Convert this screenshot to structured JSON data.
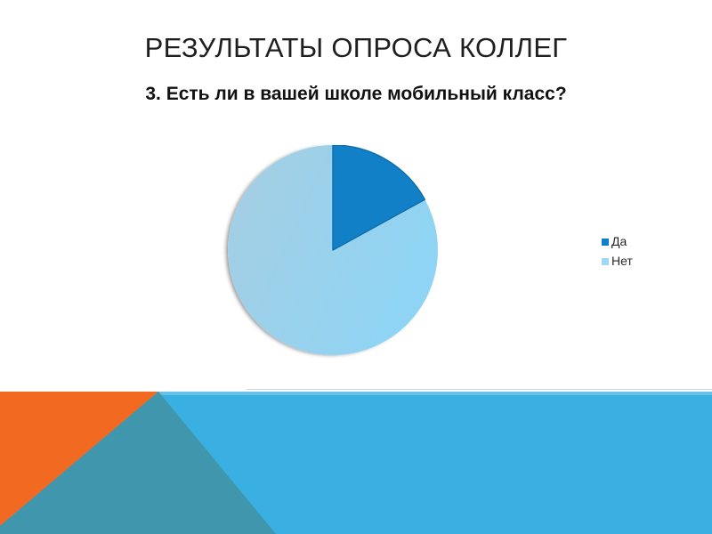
{
  "slide": {
    "title": "РЕЗУЛЬТАТЫ ОПРОСА КОЛЛЕГ"
  },
  "chart_data": {
    "type": "pie",
    "title": "3. Есть ли в вашей школе мобильный класс?",
    "categories": [
      "Да",
      "Нет"
    ],
    "values": [
      17,
      83
    ],
    "unit": "percent",
    "start_angle_deg": 0,
    "direction": "clockwise",
    "legend_position": "right",
    "colors": [
      "#1280c6",
      "#a0d7f2"
    ]
  },
  "theme": {
    "background": "#ffffff",
    "band_blue": "#3ab0e2",
    "band_teal": "#4096ac",
    "band_orange": "#f26a21",
    "pie_dark": "#1280c6",
    "pie_dark_edge": "#0d6cab",
    "pie_light_from": "#a6cee2",
    "pie_light_to": "#8fd4f4"
  }
}
